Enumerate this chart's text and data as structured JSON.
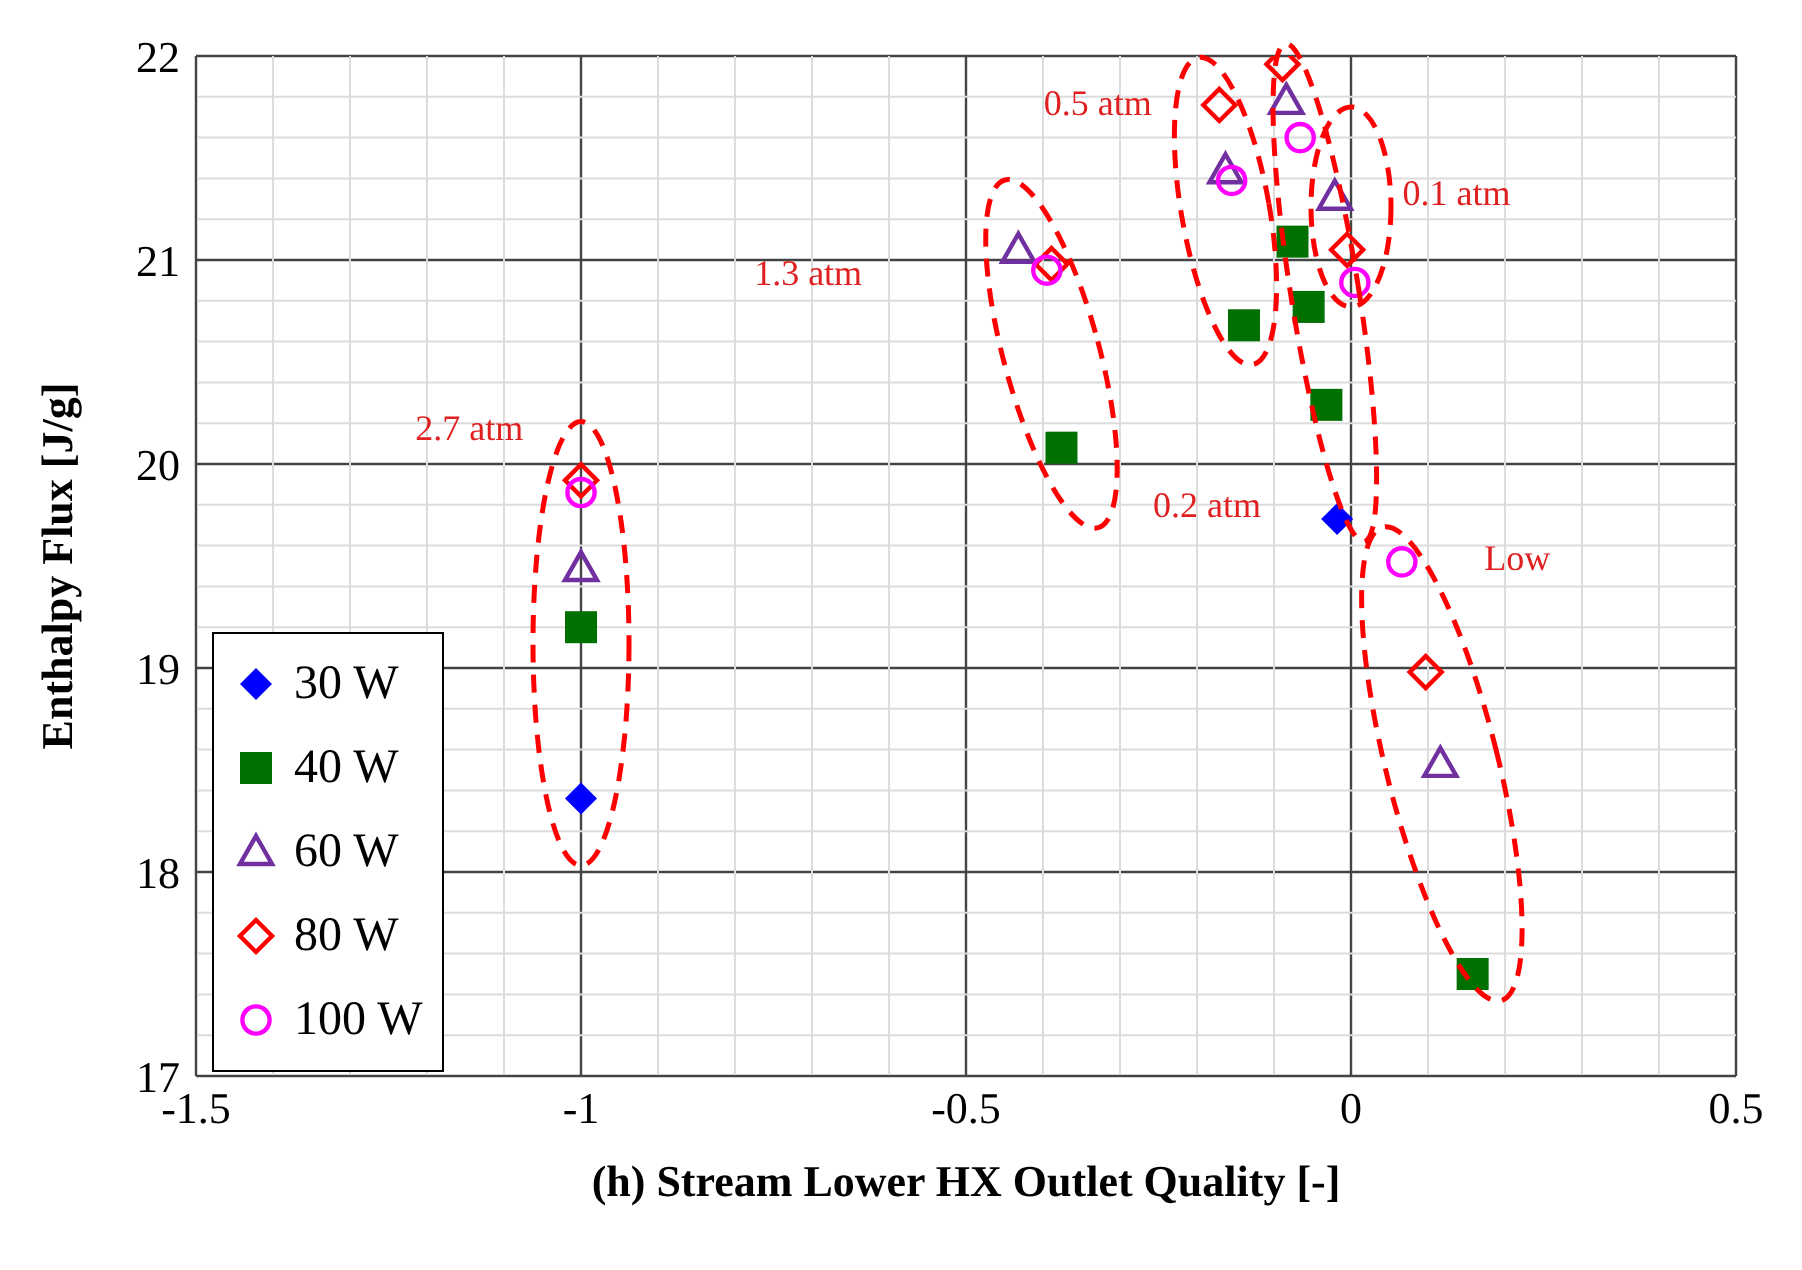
{
  "chart_data": {
    "type": "scatter",
    "xlabel": "(h) Stream Lower HX Outlet Quality [-]",
    "ylabel": "Enthalpy Flux [J/g]",
    "xlim": [
      -1.5,
      0.5
    ],
    "xticks": [
      -1.5,
      -1,
      -0.5,
      0,
      0.5
    ],
    "ylim": [
      17,
      22
    ],
    "yticks": [
      17,
      18,
      19,
      20,
      21,
      22
    ],
    "grid": true,
    "legend": "bottom left",
    "series": [
      {
        "name": "30 W",
        "color": "#0000ff",
        "marker": "diamond",
        "x": [
          -1,
          -0.018
        ],
        "values": [
          18.36,
          19.73
        ]
      },
      {
        "name": "40 W",
        "color": "#007000",
        "marker": "square",
        "x": [
          -1,
          -0.376,
          -0.139,
          -0.076,
          -0.055,
          -0.032,
          0.158
        ],
        "values": [
          19.2,
          20.08,
          20.68,
          21.09,
          20.77,
          20.29,
          17.5
        ]
      },
      {
        "name": "60 W",
        "color": "#7030a0",
        "marker": "triangle",
        "x": [
          -1,
          -0.432,
          -0.163,
          -0.084,
          -0.021,
          0.116
        ],
        "values": [
          19.49,
          21.05,
          21.44,
          21.78,
          21.31,
          18.53
        ]
      },
      {
        "name": "80 W",
        "color": "#ff0000",
        "marker": "diamond",
        "x": [
          -1,
          -0.389,
          -0.171,
          -0.089,
          -0.005,
          0.097
        ],
        "values": [
          19.92,
          20.98,
          21.76,
          21.96,
          21.05,
          18.98
        ]
      },
      {
        "name": "100 W",
        "color": "#ff00ff",
        "marker": "circle",
        "x": [
          -1,
          -0.395,
          -0.155,
          -0.066,
          0.005,
          0.066
        ],
        "values": [
          19.86,
          20.95,
          21.39,
          21.6,
          20.89,
          19.52
        ]
      }
    ],
    "annotations": [
      "2.7 atm",
      "1.3 atm",
      "0.5 atm",
      "0.1 atm",
      "0.2 atm",
      "Low"
    ]
  }
}
